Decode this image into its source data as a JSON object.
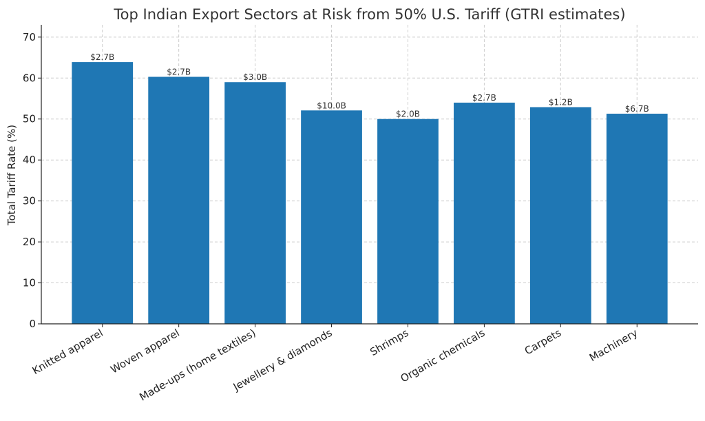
{
  "chart_data": {
    "type": "bar",
    "title": "Top Indian Export Sectors at Risk from 50% U.S. Tariff (GTRI estimates)",
    "xlabel": "",
    "ylabel": "Total Tariff Rate (%)",
    "ylim": [
      0,
      73
    ],
    "yticks": [
      0,
      10,
      20,
      30,
      40,
      50,
      60,
      70
    ],
    "grid": true,
    "bar_color": "#1f77b4",
    "categories": [
      "Knitted apparel",
      "Woven apparel",
      "Made-ups (home textiles)",
      "Jewellery & diamonds",
      "Shrimps",
      "Organic chemicals",
      "Carpets",
      "Machinery"
    ],
    "values": [
      63.9,
      60.3,
      59.0,
      52.1,
      50.0,
      54.0,
      52.9,
      51.3
    ],
    "data_labels": [
      "$2.7B",
      "$2.7B",
      "$3.0B",
      "$10.0B",
      "$2.0B",
      "$2.7B",
      "$1.2B",
      "$6.7B"
    ]
  }
}
